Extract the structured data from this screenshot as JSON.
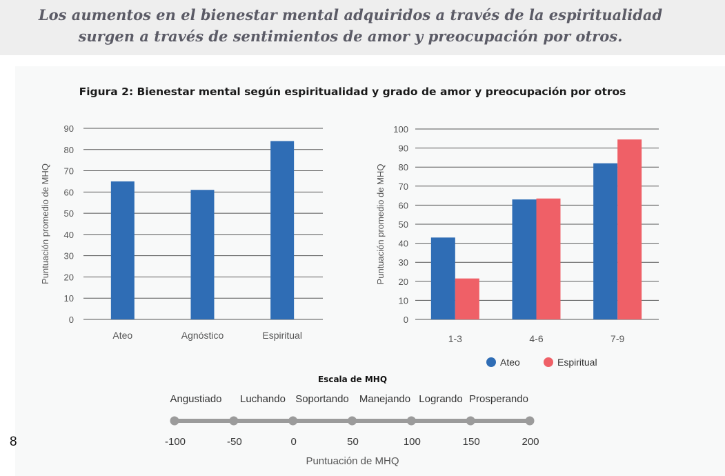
{
  "headline": {
    "line1": "Los aumentos en el bienestar mental adquiridos a través de la espiritualidad",
    "line2": "surgen a través de sentimientos de amor y preocupación por otros."
  },
  "figure_title": "Figura 2:  Bienestar mental según espiritualidad y grado de amor y preocupación por otros",
  "page_number": "8",
  "colors": {
    "ateo": "#2f6db5",
    "espiritual": "#ef6067",
    "grid": "#555555",
    "scale": "#9b9b9b"
  },
  "chart_data": [
    {
      "type": "bar",
      "title": "",
      "ylabel": "Puntuación promedio de MHQ",
      "xlabel": "",
      "ylim": [
        0,
        90
      ],
      "yticks": [
        0,
        10,
        20,
        30,
        40,
        50,
        60,
        70,
        80,
        90
      ],
      "categories": [
        "Ateo",
        "Agnóstico",
        "Espiritual"
      ],
      "values": [
        65,
        61,
        84
      ],
      "grid": true
    },
    {
      "type": "bar",
      "title": "",
      "ylabel": "Puntuación promedio de MHQ",
      "xlabel": "",
      "ylim": [
        0,
        100
      ],
      "yticks": [
        0,
        10,
        20,
        30,
        40,
        50,
        60,
        70,
        80,
        90,
        100
      ],
      "categories": [
        "1-3",
        "4-6",
        "7-9"
      ],
      "series": [
        {
          "name": "Ateo",
          "values": [
            43,
            63,
            82
          ]
        },
        {
          "name": "Espiritual",
          "values": [
            21.5,
            63.5,
            94.5
          ]
        }
      ],
      "legend": "bottom",
      "grid": true
    }
  ],
  "mhq_scale": {
    "title": "Escala de MHQ",
    "categories": [
      "Angustiado",
      "Luchando",
      "Soportando",
      "Manejando",
      "Logrando",
      "Prosperando"
    ],
    "ticks": [
      "-100",
      "-50",
      "0",
      "50",
      "100",
      "150",
      "200"
    ],
    "xlabel": "Puntuación de MHQ"
  }
}
